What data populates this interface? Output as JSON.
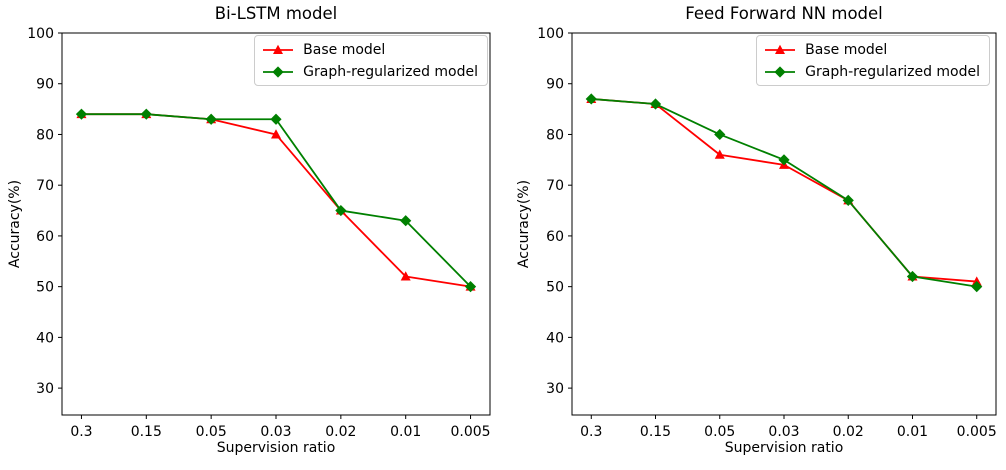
{
  "figure": {
    "background": "#ffffff",
    "axis_color": "#000000",
    "text_color": "#000000",
    "legend_border_color": "#cccccc"
  },
  "chart_data": [
    {
      "type": "line",
      "title": "Bi-LSTM model",
      "xlabel": "Supervision ratio",
      "ylabel": "Accuracy(%)",
      "categories": [
        "0.3",
        "0.15",
        "0.05",
        "0.03",
        "0.02",
        "0.01",
        "0.005"
      ],
      "yticks": [
        30,
        40,
        50,
        60,
        70,
        80,
        90,
        100
      ],
      "ylim": [
        24.7,
        100
      ],
      "grid": false,
      "legend_position": "upper right",
      "series": [
        {
          "name": "Base model",
          "color": "#ff0000",
          "marker": "triangle",
          "values": [
            84,
            84,
            83,
            80,
            65,
            52,
            50
          ]
        },
        {
          "name": "Graph-regularized model",
          "color": "#008000",
          "marker": "diamond",
          "values": [
            84,
            84,
            83,
            83,
            65,
            63,
            50
          ]
        }
      ]
    },
    {
      "type": "line",
      "title": "Feed Forward NN model",
      "xlabel": "Supervision ratio",
      "ylabel": "Accuracy(%)",
      "categories": [
        "0.3",
        "0.15",
        "0.05",
        "0.03",
        "0.02",
        "0.01",
        "0.005"
      ],
      "yticks": [
        30,
        40,
        50,
        60,
        70,
        80,
        90,
        100
      ],
      "ylim": [
        24.7,
        100
      ],
      "grid": false,
      "legend_position": "upper right",
      "series": [
        {
          "name": "Base model",
          "color": "#ff0000",
          "marker": "triangle",
          "values": [
            87,
            86,
            76,
            74,
            67,
            52,
            51
          ]
        },
        {
          "name": "Graph-regularized model",
          "color": "#008000",
          "marker": "diamond",
          "values": [
            87,
            86,
            80,
            75,
            67,
            52,
            50
          ]
        }
      ]
    }
  ]
}
